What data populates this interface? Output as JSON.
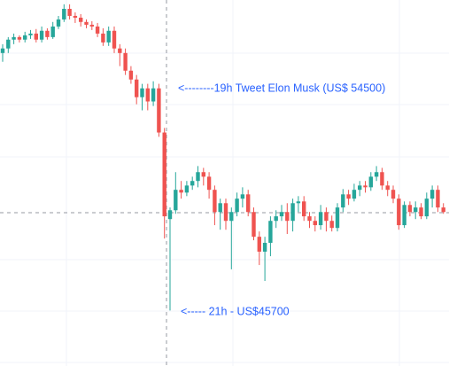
{
  "chart_data": {
    "type": "candlestick",
    "annotations": [
      "<--------19h Tweet Elon Musk (US$ 54500)",
      "<----- 21h - US$45700"
    ],
    "up_color": "#26a69a",
    "down_color": "#ef5350",
    "ylim": [
      43500,
      58000
    ],
    "open": [
      55900,
      56080,
      56430,
      56530,
      56430,
      56600,
      56670,
      56430,
      56780,
      56530,
      56950,
      57230,
      57650,
      57370,
      57300,
      57130,
      57020,
      56950,
      56670,
      56320,
      56780,
      56080,
      55900,
      55200,
      54850,
      54150,
      54500,
      53980,
      54500,
      52750,
      49320,
      49670,
      50480,
      50370,
      50650,
      50830,
      51180,
      51000,
      50480,
      49600,
      49950,
      49250,
      49600,
      50130,
      50300,
      49600,
      48620,
      48030,
      48380,
      49250,
      49430,
      49600,
      49250,
      49950,
      50020,
      49430,
      49250,
      49080,
      49600,
      49250,
      48970,
      49780,
      50300,
      50130,
      50480,
      50650,
      50580,
      51000,
      51180,
      50650,
      50480,
      50130,
      49080,
      49880,
      49600,
      49780,
      49430,
      50130,
      50480,
      49780
    ],
    "high": [
      56250,
      56530,
      56670,
      56600,
      56740,
      56810,
      56850,
      56950,
      56880,
      57130,
      57370,
      57830,
      57830,
      57510,
      57440,
      57230,
      57160,
      57090,
      56880,
      56950,
      56950,
      56250,
      56080,
      55380,
      55030,
      54680,
      54680,
      54780,
      54680,
      52930,
      49780,
      51180,
      50830,
      50830,
      51000,
      51420,
      51350,
      51180,
      50650,
      50130,
      50130,
      49780,
      50370,
      50580,
      50480,
      49780,
      48830,
      48620,
      49430,
      49670,
      49880,
      49950,
      50130,
      50230,
      50230,
      49600,
      49430,
      49880,
      49780,
      49460,
      49950,
      50510,
      50480,
      50720,
      50830,
      50830,
      51180,
      51420,
      51350,
      50830,
      50650,
      50300,
      50020,
      50020,
      50020,
      49950,
      50370,
      50650,
      50650,
      49950
    ],
    "low": [
      55550,
      55900,
      56250,
      56320,
      56320,
      56460,
      56320,
      56320,
      56430,
      56460,
      56850,
      57130,
      57230,
      57090,
      56950,
      56880,
      56810,
      56530,
      56180,
      56180,
      55900,
      55380,
      55030,
      54680,
      53870,
      53630,
      53630,
      53800,
      52580,
      48550,
      45700,
      49530,
      50130,
      50230,
      50480,
      50580,
      50650,
      50130,
      49080,
      48900,
      48900,
      47330,
      49430,
      49780,
      49430,
      48480,
      47500,
      46870,
      47850,
      48970,
      49250,
      48730,
      48830,
      49600,
      49250,
      48970,
      48830,
      48900,
      48830,
      48830,
      48830,
      49600,
      49880,
      50020,
      50230,
      50370,
      50440,
      50830,
      50480,
      50230,
      49950,
      48900,
      48970,
      49430,
      49320,
      49320,
      49320,
      49780,
      49600,
      49530
    ],
    "close": [
      56080,
      56430,
      56530,
      56430,
      56600,
      56670,
      56430,
      56780,
      56530,
      56950,
      57230,
      57650,
      57370,
      57300,
      57130,
      57020,
      56950,
      56670,
      56320,
      56780,
      56080,
      55900,
      55200,
      54850,
      54150,
      54500,
      53980,
      54500,
      52750,
      49430,
      49670,
      50480,
      50370,
      50650,
      50830,
      51180,
      51000,
      50480,
      49600,
      49950,
      49250,
      49600,
      50130,
      50300,
      49600,
      48620,
      48030,
      48380,
      49250,
      49430,
      49600,
      49250,
      49950,
      50020,
      49430,
      49250,
      49080,
      49600,
      49250,
      48970,
      49780,
      50300,
      50130,
      50480,
      50650,
      50580,
      51000,
      51180,
      50650,
      50480,
      50130,
      49080,
      49880,
      49600,
      49780,
      49430,
      50130,
      50480,
      49780,
      49600
    ]
  }
}
